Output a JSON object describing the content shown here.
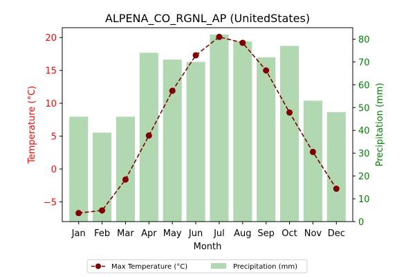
{
  "chart_data": {
    "type": "bar+line",
    "title": "ALPENA_CO_RGNL_AP (UnitedStates)",
    "xlabel": "Month",
    "ylabel_left": "Temperature (°C)",
    "ylabel_right": "Precipitation (mm)",
    "categories": [
      "Jan",
      "Feb",
      "Mar",
      "Apr",
      "May",
      "Jun",
      "Jul",
      "Aug",
      "Sep",
      "Oct",
      "Nov",
      "Dec"
    ],
    "y_left_lim": [
      -8,
      21.5
    ],
    "y_right_lim": [
      0,
      85
    ],
    "y_left_ticks": [
      -5,
      0,
      5,
      10,
      15,
      20
    ],
    "y_right_ticks": [
      0,
      10,
      20,
      30,
      40,
      50,
      60,
      70,
      80
    ],
    "series": [
      {
        "name": "Max Temperature (°C)",
        "type": "line",
        "axis": "left",
        "color": "#800000",
        "values": [
          -6.7,
          -6.3,
          -1.6,
          5.1,
          11.9,
          17.3,
          20.1,
          19.2,
          15.0,
          8.6,
          2.6,
          -3.0
        ]
      },
      {
        "name": "Precipitation (mm)",
        "type": "bar",
        "axis": "right",
        "color": "#b1d8b1",
        "values": [
          46,
          39,
          46,
          74,
          71,
          70,
          82,
          79,
          72,
          77,
          53,
          48
        ]
      }
    ],
    "left_axis_color": "#ff0000",
    "right_axis_color": "#008000",
    "legend_position": "bottom-center"
  }
}
